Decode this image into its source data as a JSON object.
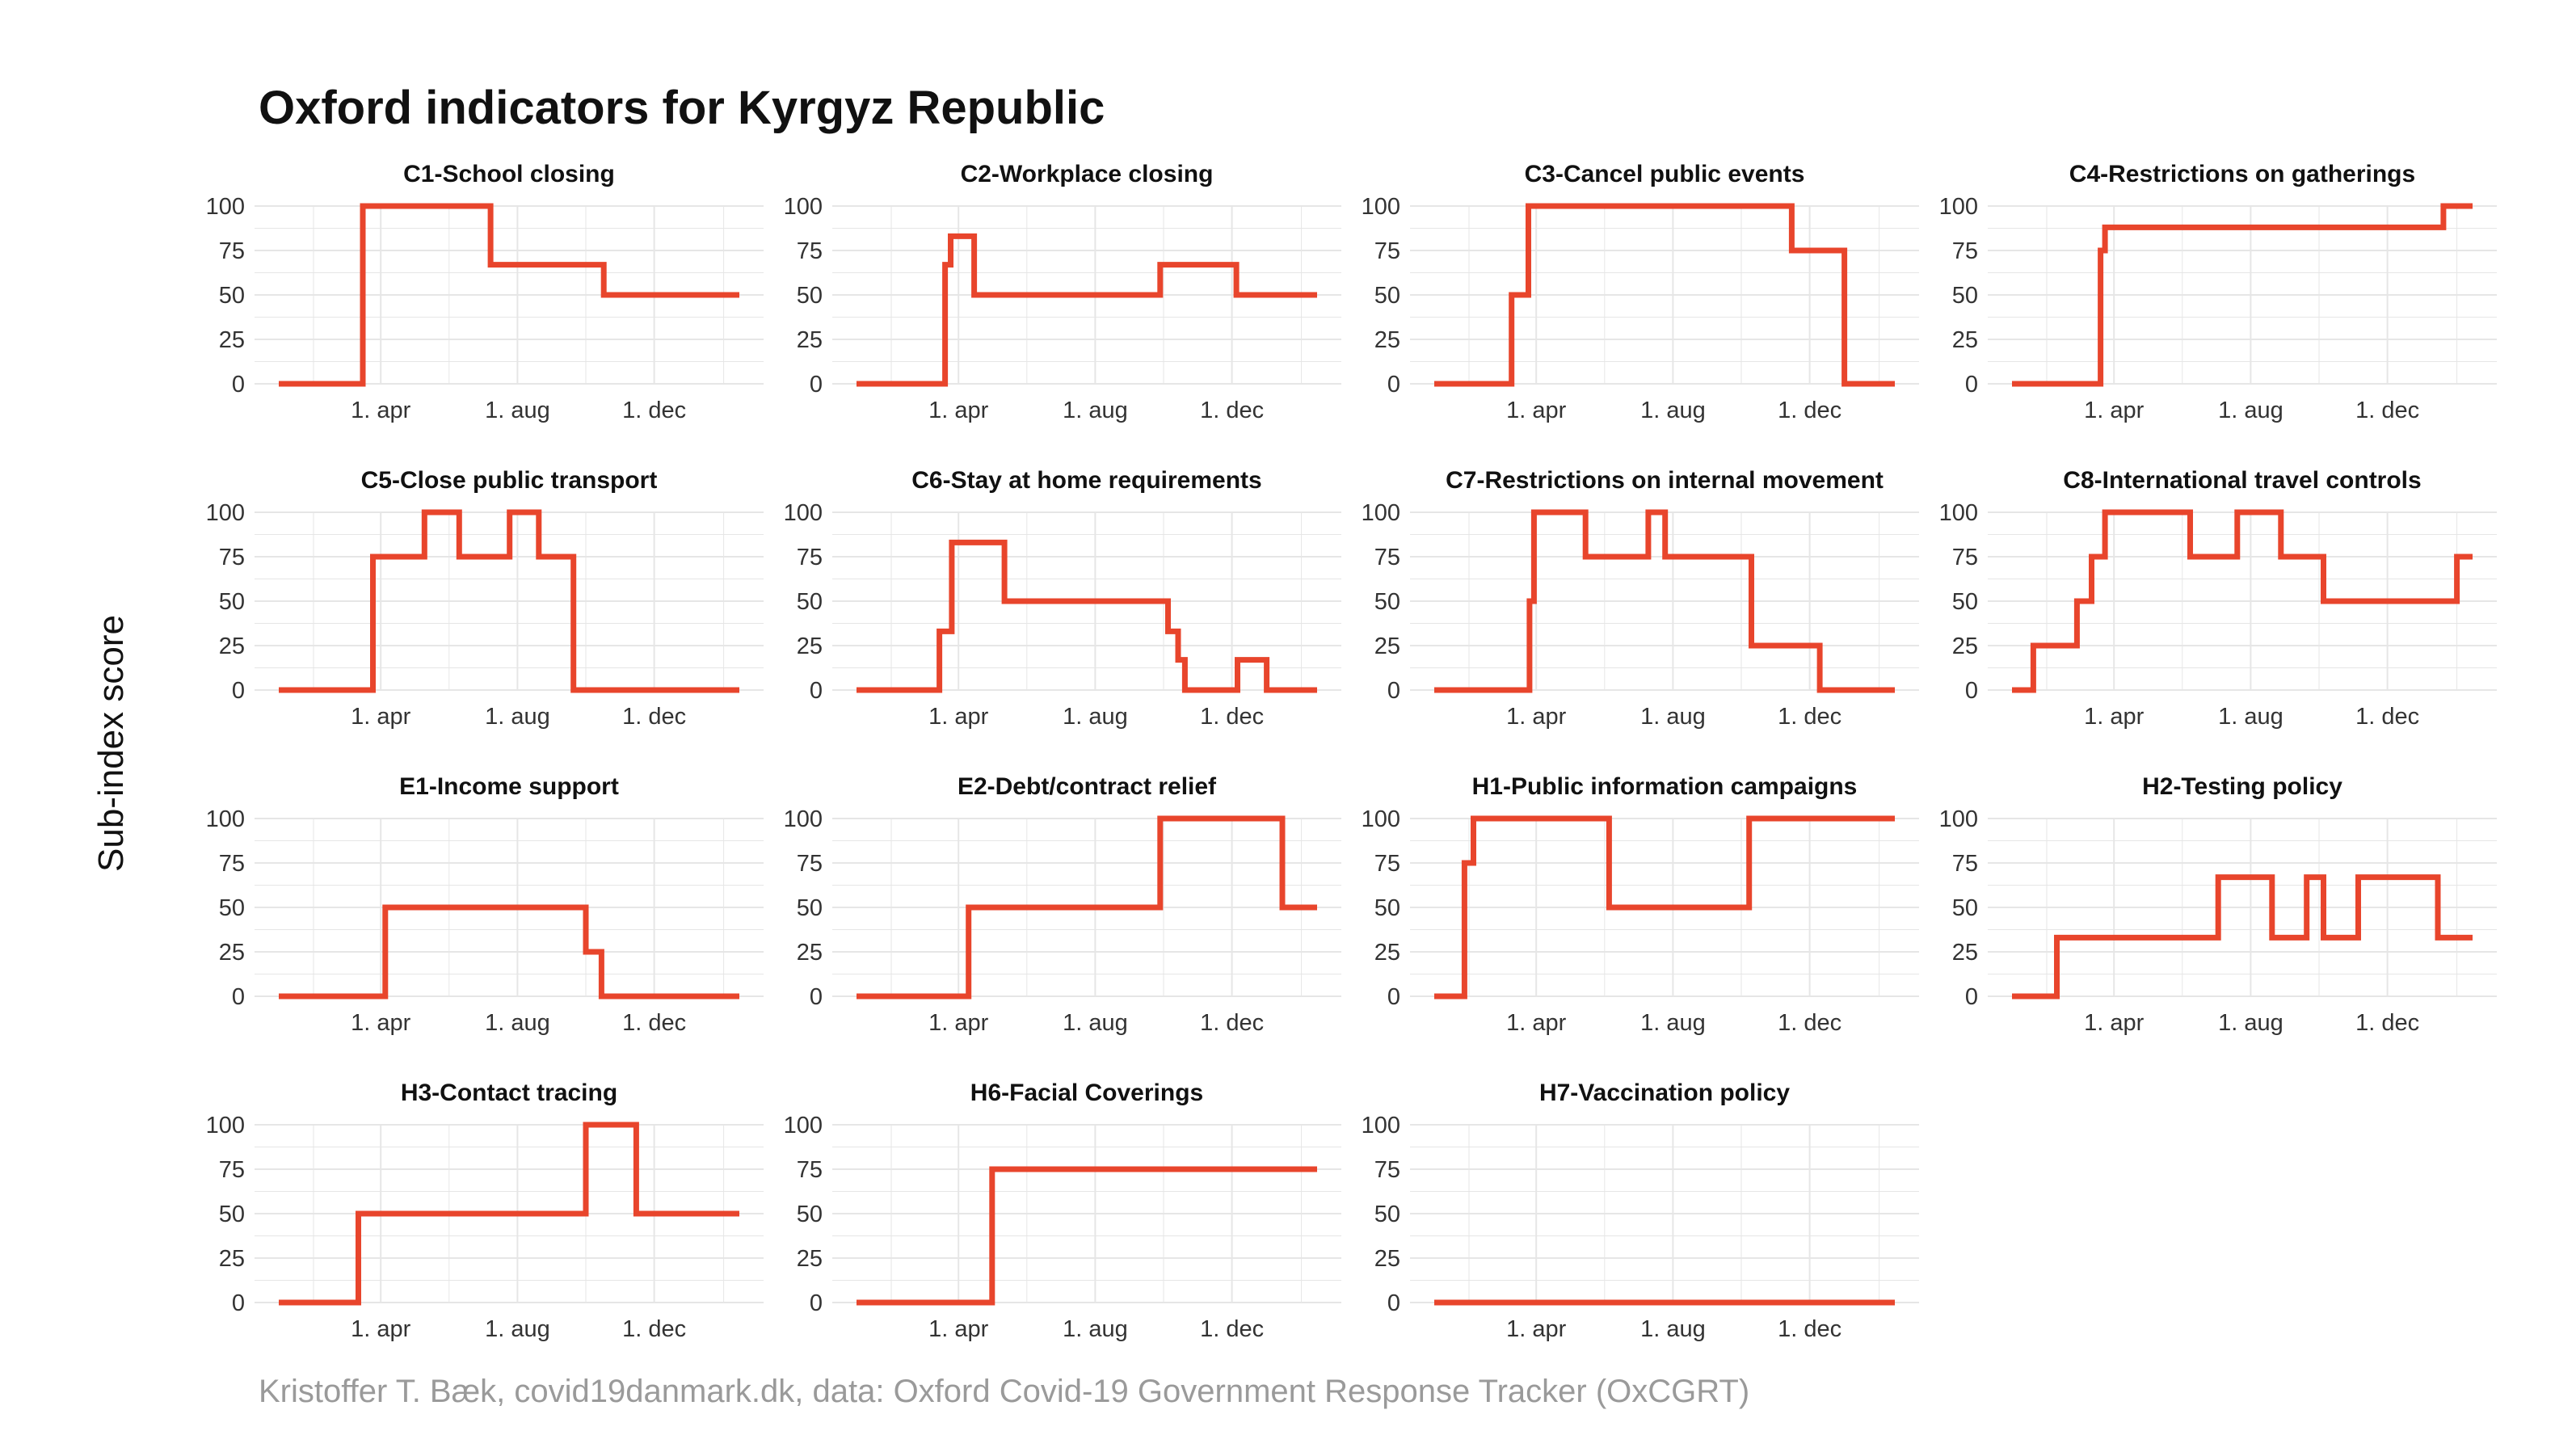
{
  "title": "Oxford indicators for Kyrgyz Republic",
  "ylabel": "Sub-index score",
  "caption": "Kristoffer T. Bæk, covid19danmark.dk, data: Oxford Covid-19 Government Response Tracker (OxCGRT)",
  "colors": {
    "line": "#e8452c",
    "grid": "#e6e6e6",
    "text": "#333333"
  },
  "chart_data": [
    {
      "type": "line",
      "title": "C1-School closing",
      "x": [
        "2020-01-01",
        "2020-03-16",
        "2020-07-08",
        "2020-10-17",
        "2021-02-15"
      ],
      "values": [
        0,
        100,
        67,
        50,
        50
      ],
      "ylim": [
        0,
        100
      ],
      "y_ticks": [
        0,
        25,
        50,
        75,
        100
      ],
      "x_ticks": [
        "1. apr",
        "1. aug",
        "1. dec"
      ]
    },
    {
      "type": "line",
      "title": "C2-Workplace closing",
      "x": [
        "2020-01-01",
        "2020-03-20",
        "2020-03-25",
        "2020-04-15",
        "2020-09-28",
        "2020-12-05",
        "2021-02-15"
      ],
      "values": [
        0,
        67,
        83,
        50,
        67,
        50,
        50
      ],
      "ylim": [
        0,
        100
      ],
      "y_ticks": [
        0,
        25,
        50,
        75,
        100
      ],
      "x_ticks": [
        "1. apr",
        "1. aug",
        "1. dec"
      ]
    },
    {
      "type": "line",
      "title": "C3-Cancel public events",
      "x": [
        "2020-01-01",
        "2020-03-10",
        "2020-03-25",
        "2020-11-15",
        "2021-01-01",
        "2021-02-15"
      ],
      "values": [
        0,
        50,
        100,
        75,
        0,
        0
      ],
      "ylim": [
        0,
        100
      ],
      "y_ticks": [
        0,
        25,
        50,
        75,
        100
      ],
      "x_ticks": [
        "1. apr",
        "1. aug",
        "1. dec"
      ]
    },
    {
      "type": "line",
      "title": "C4-Restrictions on gatherings",
      "x": [
        "2020-01-01",
        "2020-03-20",
        "2020-03-24",
        "2021-01-20",
        "2021-02-15"
      ],
      "values": [
        0,
        75,
        88,
        100,
        100
      ],
      "ylim": [
        0,
        100
      ],
      "y_ticks": [
        0,
        25,
        50,
        75,
        100
      ],
      "x_ticks": [
        "1. apr",
        "1. aug",
        "1. dec"
      ]
    },
    {
      "type": "line",
      "title": "C5-Close public transport",
      "x": [
        "2020-01-01",
        "2020-03-25",
        "2020-05-10",
        "2020-06-10",
        "2020-07-25",
        "2020-08-20",
        "2020-09-20",
        "2021-02-15"
      ],
      "values": [
        0,
        75,
        100,
        75,
        100,
        75,
        0,
        0
      ],
      "ylim": [
        0,
        100
      ],
      "y_ticks": [
        0,
        25,
        50,
        75,
        100
      ],
      "x_ticks": [
        "1. apr",
        "1. aug",
        "1. dec"
      ]
    },
    {
      "type": "line",
      "title": "C6-Stay at home requirements",
      "x": [
        "2020-01-01",
        "2020-03-15",
        "2020-03-26",
        "2020-05-12",
        "2020-10-05",
        "2020-10-14",
        "2020-10-20",
        "2020-10-24",
        "2020-12-06",
        "2021-01-01",
        "2021-02-15"
      ],
      "values": [
        0,
        33,
        83,
        50,
        33,
        17,
        0,
        0,
        17,
        0,
        0
      ],
      "ylim": [
        0,
        100
      ],
      "y_ticks": [
        0,
        25,
        50,
        75,
        100
      ],
      "x_ticks": [
        "1. apr",
        "1. aug",
        "1. dec"
      ]
    },
    {
      "type": "line",
      "title": "C7-Restrictions on internal movement",
      "x": [
        "2020-01-01",
        "2020-03-26",
        "2020-03-30",
        "2020-05-15",
        "2020-07-10",
        "2020-07-25",
        "2020-10-10",
        "2020-12-10",
        "2021-02-15"
      ],
      "values": [
        0,
        50,
        100,
        75,
        100,
        75,
        25,
        0,
        0
      ],
      "ylim": [
        0,
        100
      ],
      "y_ticks": [
        0,
        25,
        50,
        75,
        100
      ],
      "x_ticks": [
        "1. apr",
        "1. aug",
        "1. dec"
      ]
    },
    {
      "type": "line",
      "title": "C8-International travel controls",
      "x": [
        "2020-01-01",
        "2020-01-20",
        "2020-02-28",
        "2020-03-12",
        "2020-03-24",
        "2020-06-08",
        "2020-07-20",
        "2020-08-28",
        "2020-10-05",
        "2021-02-01",
        "2021-02-15"
      ],
      "values": [
        0,
        25,
        50,
        75,
        100,
        75,
        100,
        75,
        50,
        75,
        75
      ],
      "ylim": [
        0,
        100
      ],
      "y_ticks": [
        0,
        25,
        50,
        75,
        100
      ],
      "x_ticks": [
        "1. apr",
        "1. aug",
        "1. dec"
      ]
    },
    {
      "type": "line",
      "title": "E1-Income support",
      "x": [
        "2020-01-01",
        "2020-04-05",
        "2020-10-01",
        "2020-10-15",
        "2021-02-15"
      ],
      "values": [
        0,
        50,
        25,
        0,
        0
      ],
      "ylim": [
        0,
        100
      ],
      "y_ticks": [
        0,
        25,
        50,
        75,
        100
      ],
      "x_ticks": [
        "1. apr",
        "1. aug",
        "1. dec"
      ]
    },
    {
      "type": "line",
      "title": "E2-Debt/contract relief",
      "x": [
        "2020-01-01",
        "2020-04-10",
        "2020-09-28",
        "2021-01-15",
        "2021-02-15"
      ],
      "values": [
        0,
        50,
        100,
        50,
        50
      ],
      "ylim": [
        0,
        100
      ],
      "y_ticks": [
        0,
        25,
        50,
        75,
        100
      ],
      "x_ticks": [
        "1. apr",
        "1. aug",
        "1. dec"
      ]
    },
    {
      "type": "line",
      "title": "H1-Public information campaigns",
      "x": [
        "2020-01-01",
        "2020-01-28",
        "2020-02-05",
        "2020-06-05",
        "2020-10-08",
        "2021-02-15"
      ],
      "values": [
        0,
        75,
        100,
        50,
        100,
        100
      ],
      "ylim": [
        0,
        100
      ],
      "y_ticks": [
        0,
        25,
        50,
        75,
        100
      ],
      "x_ticks": [
        "1. apr",
        "1. aug",
        "1. dec"
      ]
    },
    {
      "type": "line",
      "title": "H2-Testing policy",
      "x": [
        "2020-01-01",
        "2020-02-10",
        "2020-07-03",
        "2020-08-20",
        "2020-09-20",
        "2020-10-05",
        "2020-11-05",
        "2021-01-15",
        "2021-02-15"
      ],
      "values": [
        0,
        33,
        67,
        33,
        67,
        33,
        67,
        33,
        33
      ],
      "ylim": [
        0,
        100
      ],
      "y_ticks": [
        0,
        25,
        50,
        75,
        100
      ],
      "x_ticks": [
        "1. apr",
        "1. aug",
        "1. dec"
      ]
    },
    {
      "type": "line",
      "title": "H3-Contact tracing",
      "x": [
        "2020-01-01",
        "2020-03-12",
        "2020-10-01",
        "2020-11-15",
        "2021-02-15"
      ],
      "values": [
        0,
        50,
        100,
        50,
        50
      ],
      "ylim": [
        0,
        100
      ],
      "y_ticks": [
        0,
        25,
        50,
        75,
        100
      ],
      "x_ticks": [
        "1. apr",
        "1. aug",
        "1. dec"
      ]
    },
    {
      "type": "line",
      "title": "H6-Facial Coverings",
      "x": [
        "2020-01-01",
        "2020-05-01",
        "2021-02-15"
      ],
      "values": [
        0,
        75,
        75
      ],
      "ylim": [
        0,
        100
      ],
      "y_ticks": [
        0,
        25,
        50,
        75,
        100
      ],
      "x_ticks": [
        "1. apr",
        "1. aug",
        "1. dec"
      ]
    },
    {
      "type": "line",
      "title": "H7-Vaccination policy",
      "x": [
        "2020-01-01",
        "2021-02-15"
      ],
      "values": [
        0,
        0
      ],
      "ylim": [
        0,
        100
      ],
      "y_ticks": [
        0,
        25,
        50,
        75,
        100
      ],
      "x_ticks": [
        "1. apr",
        "1. aug",
        "1. dec"
      ]
    }
  ]
}
